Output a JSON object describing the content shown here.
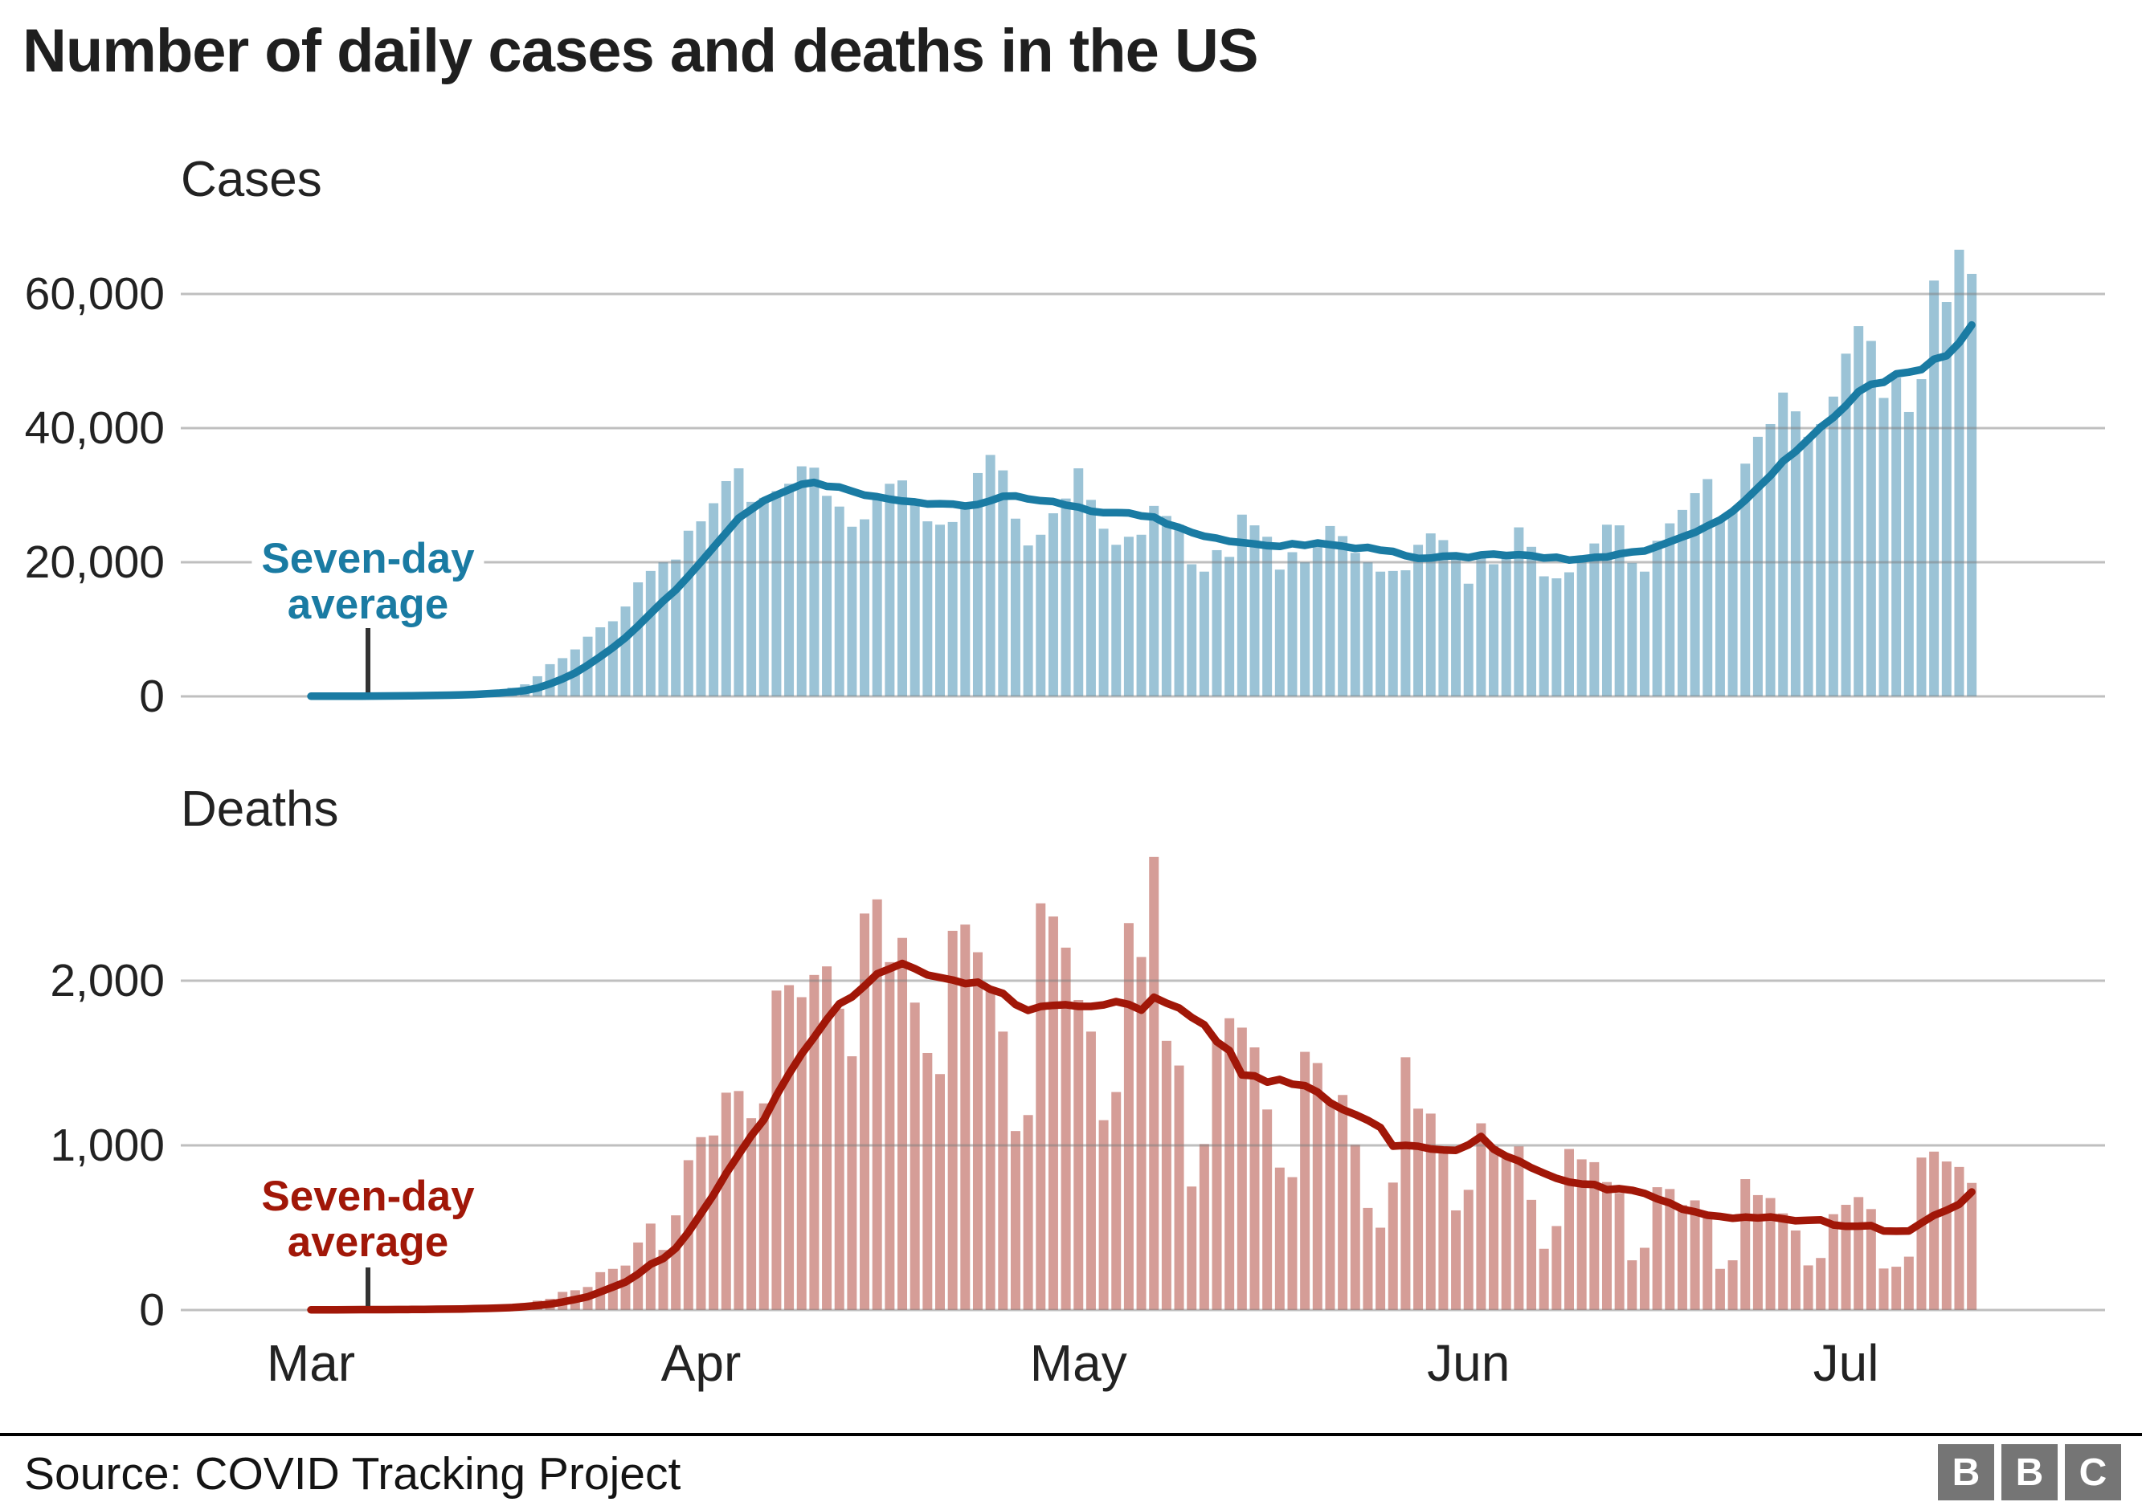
{
  "title": "Number of daily cases and deaths in the US",
  "annotations": {
    "cases": {
      "line1": "Seven-day",
      "line2": "average"
    },
    "deaths": {
      "line1": "Seven-day",
      "line2": "average"
    }
  },
  "colors": {
    "cases_bar": "#9bc3d6",
    "cases_line": "#1a7ba3",
    "deaths_bar": "#d59d97",
    "deaths_line": "#a11708",
    "grid": "rgba(128,128,128,0.5)",
    "leader": "#333333",
    "text": "#222222"
  },
  "footer": {
    "source": "Source: COVID Tracking Project",
    "logo_letters": [
      "B",
      "B",
      "C"
    ]
  },
  "chart_data": [
    {
      "type": "bar",
      "title": "Cases",
      "grid": "horizontal",
      "legend_position": "none",
      "ylim": [
        0,
        68000
      ],
      "yticks": [
        {
          "v": 0,
          "label": "0"
        },
        {
          "v": 20000,
          "label": "20,000"
        },
        {
          "v": 40000,
          "label": "40,000"
        },
        {
          "v": 60000,
          "label": "60,000"
        }
      ],
      "x": {
        "unit": "day",
        "tick_labels": [
          "Mar",
          "Apr",
          "May",
          "Jun",
          "Jul"
        ],
        "tick_day_offsets": [
          0,
          31,
          61,
          92,
          122
        ]
      },
      "series": [
        {
          "name": "Daily cases",
          "values": [
            25,
            20,
            30,
            55,
            65,
            105,
            105,
            120,
            150,
            200,
            270,
            330,
            400,
            520,
            780,
            900,
            1300,
            1800,
            3000,
            4800,
            5700,
            7000,
            8900,
            10300,
            11200,
            13400,
            17000,
            18700,
            20000,
            20400,
            24700,
            26100,
            28800,
            32100,
            34000,
            29000,
            29600,
            30600,
            31700,
            34300,
            34100,
            29900,
            28300,
            25300,
            26400,
            30100,
            31700,
            32200,
            29000,
            26100,
            25600,
            26000,
            28100,
            33300,
            36000,
            33700,
            26500,
            22500,
            24100,
            27300,
            29500,
            34000,
            29300,
            25000,
            22600,
            23800,
            24100,
            28400,
            26900,
            25600,
            19700,
            18600,
            21800,
            20800,
            27100,
            25500,
            23800,
            18900,
            21500,
            20000,
            23300,
            25400,
            23900,
            21400,
            20000,
            18600,
            18700,
            18800,
            22600,
            24300,
            23300,
            20400,
            16800,
            21400,
            19700,
            21100,
            25200,
            22300,
            17900,
            17600,
            18500,
            20800,
            22800,
            25600,
            25500,
            19900,
            18600,
            23200,
            25800,
            27800,
            30300,
            32400,
            26100,
            27600,
            34700,
            38700,
            40600,
            45300,
            42500,
            38700,
            40600,
            44700,
            51100,
            55200,
            53000,
            44500,
            47500,
            42400,
            47300,
            62000,
            58800,
            66600,
            63000
          ]
        },
        {
          "name": "Seven-day average",
          "derived": "7-day rolling mean of Daily cases"
        }
      ]
    },
    {
      "type": "bar",
      "title": "Deaths",
      "grid": "horizontal",
      "legend_position": "none",
      "ylim": [
        0,
        2800
      ],
      "yticks": [
        {
          "v": 0,
          "label": "0"
        },
        {
          "v": 1000,
          "label": "1,000"
        },
        {
          "v": 2000,
          "label": "2,000"
        }
      ],
      "x": {
        "unit": "day",
        "tick_labels": [
          "Mar",
          "Apr",
          "May",
          "Jun",
          "Jul"
        ],
        "tick_day_offsets": [
          0,
          31,
          61,
          92,
          122
        ]
      },
      "series": [
        {
          "name": "Daily deaths",
          "values": [
            1,
            1,
            3,
            2,
            4,
            3,
            4,
            4,
            5,
            7,
            6,
            9,
            11,
            15,
            16,
            22,
            28,
            42,
            57,
            68,
            110,
            120,
            140,
            230,
            250,
            270,
            410,
            525,
            365,
            575,
            910,
            1050,
            1060,
            1320,
            1330,
            1165,
            1255,
            1940,
            1973,
            1900,
            2035,
            2087,
            1830,
            1541,
            2408,
            2494,
            2113,
            2260,
            1867,
            1561,
            1433,
            2303,
            2341,
            2173,
            1957,
            1691,
            1087,
            1184,
            2470,
            2390,
            2201,
            1883,
            1691,
            1153,
            1324,
            2350,
            2144,
            2752,
            1635,
            1485,
            750,
            1008,
            1630,
            1772,
            1715,
            1595,
            1218,
            865,
            807,
            1568,
            1500,
            1263,
            1306,
            1003,
            620,
            500,
            774,
            1535,
            1223,
            1193,
            960,
            605,
            730,
            1134,
            995,
            921,
            994,
            669,
            372,
            510,
            978,
            915,
            898,
            777,
            711,
            302,
            378,
            746,
            735,
            637,
            666,
            565,
            250,
            302,
            795,
            698,
            680,
            587,
            483,
            271,
            316,
            582,
            639,
            686,
            613,
            252,
            263,
            324,
            926,
            962,
            902,
            869,
            772
          ]
        },
        {
          "name": "Seven-day average",
          "derived": "7-day rolling mean of Daily deaths"
        }
      ]
    }
  ]
}
